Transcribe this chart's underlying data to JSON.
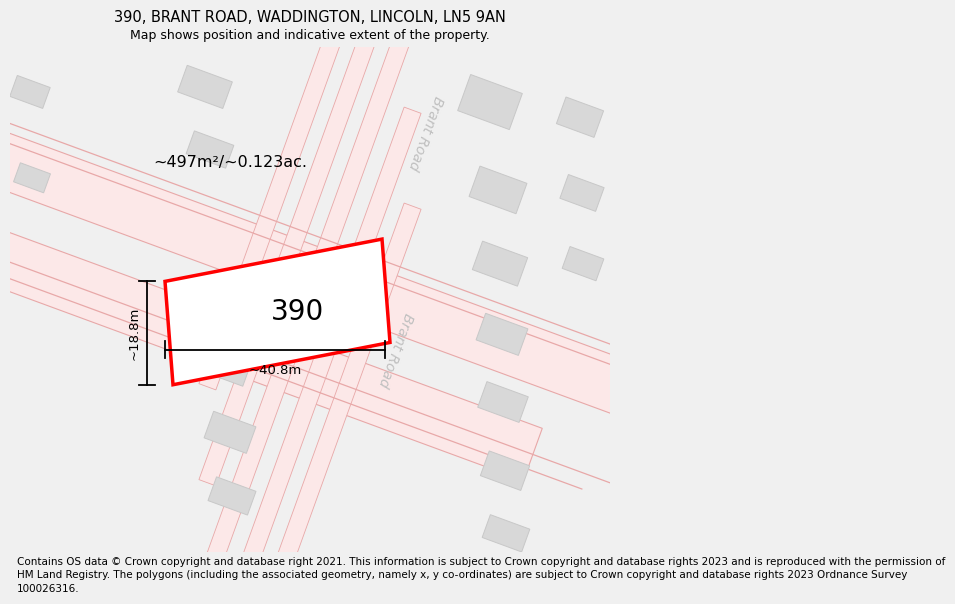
{
  "title_line1": "390, BRANT ROAD, WADDINGTON, LINCOLN, LN5 9AN",
  "title_line2": "Map shows position and indicative extent of the property.",
  "footer_lines": [
    "Contains OS data © Crown copyright and database right 2021. This information is subject to Crown copyright and database rights 2023 and is reproduced with the permission of",
    "HM Land Registry. The polygons (including the associated geometry, namely x, y co-ordinates) are subject to Crown copyright and database rights 2023 Ordnance Survey",
    "100026316."
  ],
  "area_label": "~497m²/~0.123ac.",
  "width_label": "~40.8m",
  "height_label": "~18.8m",
  "plot_number": "390",
  "bg_color": "#f0f0f0",
  "map_bg": "#ffffff",
  "road_fill": "#fce8e8",
  "road_edge": "#e8a8a8",
  "building_fill": "#d8d8d8",
  "building_edge": "#c8c8c8",
  "highlight_fill": "#ffffff",
  "highlight_edge": "#ff0000",
  "road_label_color": "#c0c0c0",
  "brant_road_label": "Brant Road",
  "title_fontsize": 10.5,
  "subtitle_fontsize": 9,
  "footer_fontsize": 7.5,
  "annotation_fontsize": 9.5,
  "plot_label_fontsize": 20,
  "area_fontsize": 11.5,
  "road_label_fontsize": 10,
  "map_rot": -20
}
